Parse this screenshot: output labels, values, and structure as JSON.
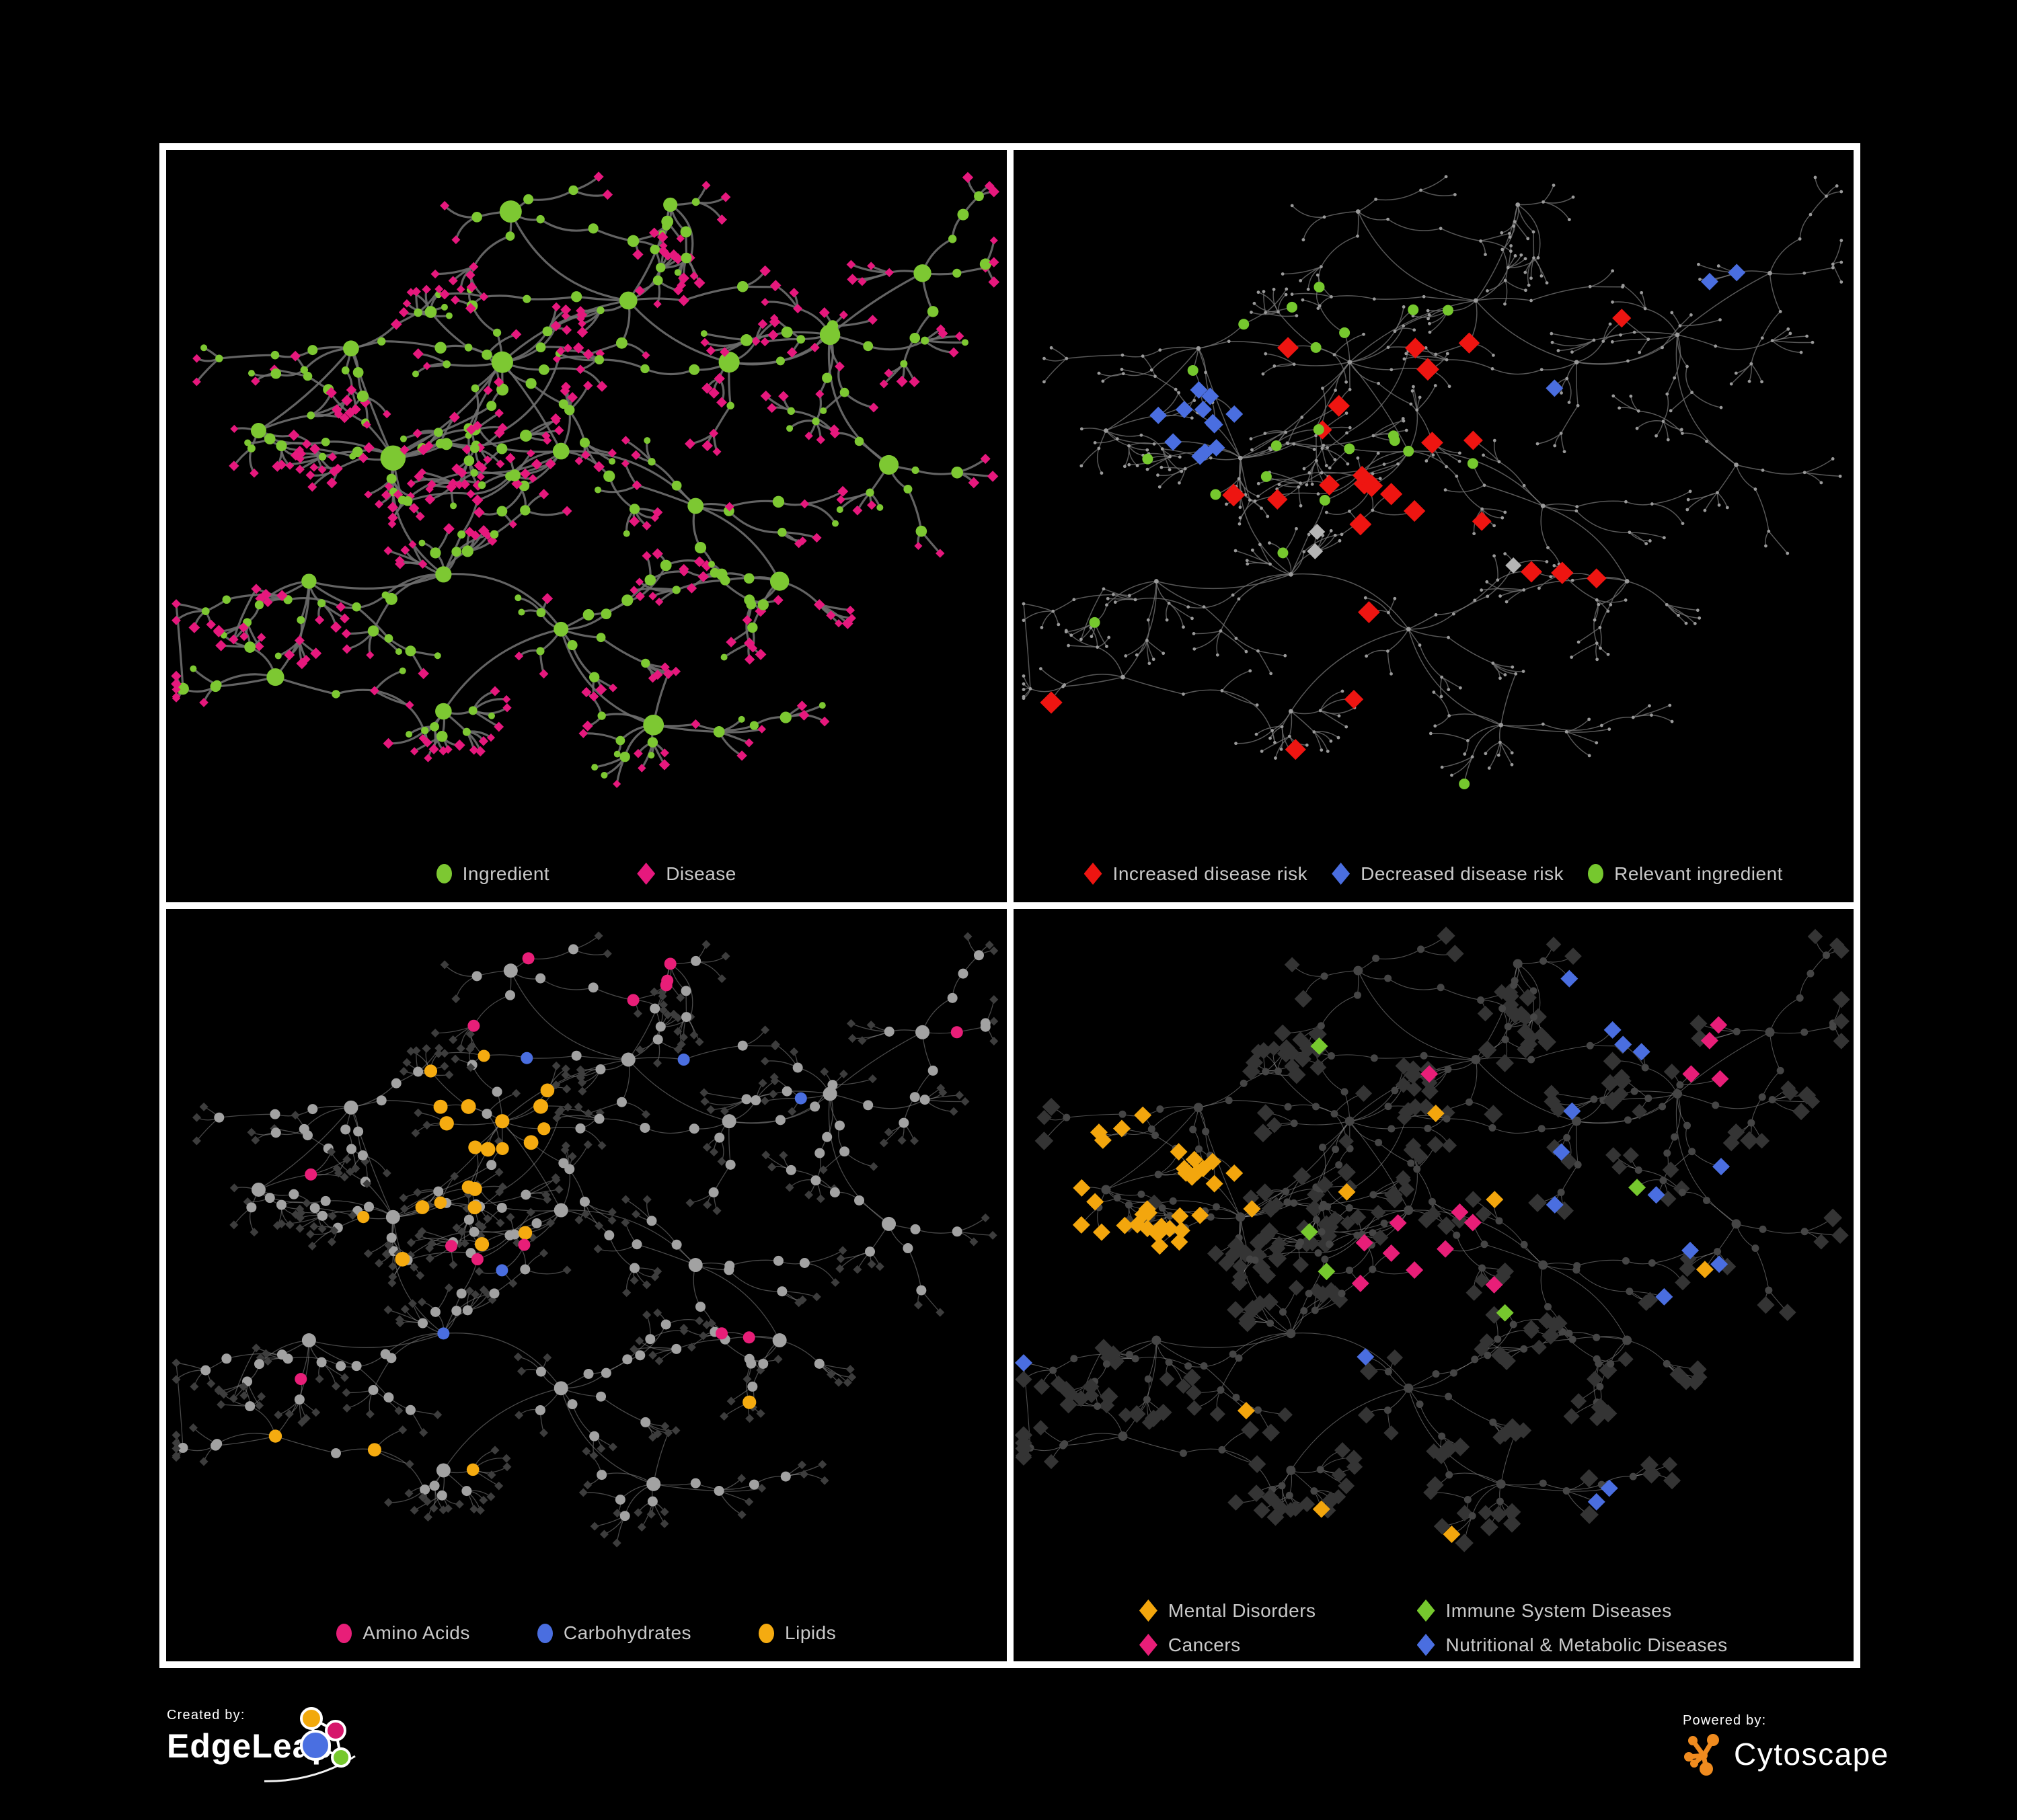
{
  "figure": {
    "background": "#000000",
    "panel_border_color": "#ffffff",
    "legend_text_color": "#c9c9c9"
  },
  "panels": [
    {
      "name": "ingredient-disease-network",
      "legend": [
        {
          "label": "Ingredient",
          "shape": "circle",
          "color": "#7dc832"
        },
        {
          "label": "Disease",
          "shape": "diamond",
          "color": "#e6187d"
        }
      ],
      "edge_color": "#6e6e6e"
    },
    {
      "name": "disease-risk-network",
      "legend": [
        {
          "label": "Increased disease risk",
          "shape": "diamond",
          "color": "#ee1511"
        },
        {
          "label": "Decreased disease risk",
          "shape": "diamond",
          "color": "#4a6ee0"
        },
        {
          "label": "Relevant ingredient",
          "shape": "circle",
          "color": "#76c82e"
        }
      ],
      "edge_color": "#747474",
      "extra_colors": {
        "neutral_diamond": "#b5b5b5",
        "base_node": "#9a9a9a"
      }
    },
    {
      "name": "nutrient-class-network",
      "legend": [
        {
          "label": "Amino Acids",
          "shape": "circle",
          "color": "#e81e78"
        },
        {
          "label": "Carbohydrates",
          "shape": "circle",
          "color": "#4a6ee0"
        },
        {
          "label": "Lipids",
          "shape": "circle",
          "color": "#f5ab10"
        }
      ],
      "edge_color": "#8f8f8f",
      "extra_colors": {
        "ingredient_node": "#a2a2a2",
        "disease_node": "#3d3d3d"
      }
    },
    {
      "name": "disease-class-network",
      "legend": [
        {
          "label": "Mental Disorders",
          "shape": "diamond",
          "color": "#f3a60d"
        },
        {
          "label": "Immune System Diseases",
          "shape": "diamond",
          "color": "#76c82e"
        },
        {
          "label": "Cancers",
          "shape": "diamond",
          "color": "#e81e78"
        },
        {
          "label": "Nutritional & Metabolic Diseases",
          "shape": "diamond",
          "color": "#4a6ee0"
        }
      ],
      "edge_color": "#9d9d9d",
      "extra_colors": {
        "base_diamond": "#343434",
        "base_circle": "#454545"
      }
    }
  ],
  "network": {
    "seed": 1337,
    "extra_edges": 40,
    "clusters": [
      [
        0.27,
        0.45,
        11
      ],
      [
        0.4,
        0.31,
        10
      ],
      [
        0.47,
        0.44,
        7
      ],
      [
        0.33,
        0.62,
        7
      ],
      [
        0.22,
        0.29,
        6
      ],
      [
        0.55,
        0.22,
        5
      ],
      [
        0.67,
        0.31,
        5
      ],
      [
        0.79,
        0.27,
        6
      ],
      [
        0.63,
        0.52,
        5
      ],
      [
        0.73,
        0.63,
        5
      ],
      [
        0.47,
        0.7,
        6
      ],
      [
        0.33,
        0.82,
        5
      ],
      [
        0.58,
        0.84,
        6
      ],
      [
        0.17,
        0.63,
        5
      ],
      [
        0.86,
        0.46,
        4
      ],
      [
        0.41,
        0.09,
        4
      ],
      [
        0.11,
        0.41,
        4
      ],
      [
        0.6,
        0.08,
        4
      ],
      [
        0.9,
        0.18,
        4
      ],
      [
        0.13,
        0.77,
        4
      ]
    ]
  },
  "credits": {
    "created_by_label": "Created by:",
    "created_by_name": "EdgeLeap",
    "powered_by_label": "Powered by:",
    "powered_by_name": "Cytoscape",
    "edgeleap_logo_colors": {
      "orange": "#f2a90c",
      "magenta": "#d6176b",
      "blue": "#4a6fe1",
      "green": "#76c82e"
    },
    "cytoscape_logo_color": "#ef8b1f"
  }
}
